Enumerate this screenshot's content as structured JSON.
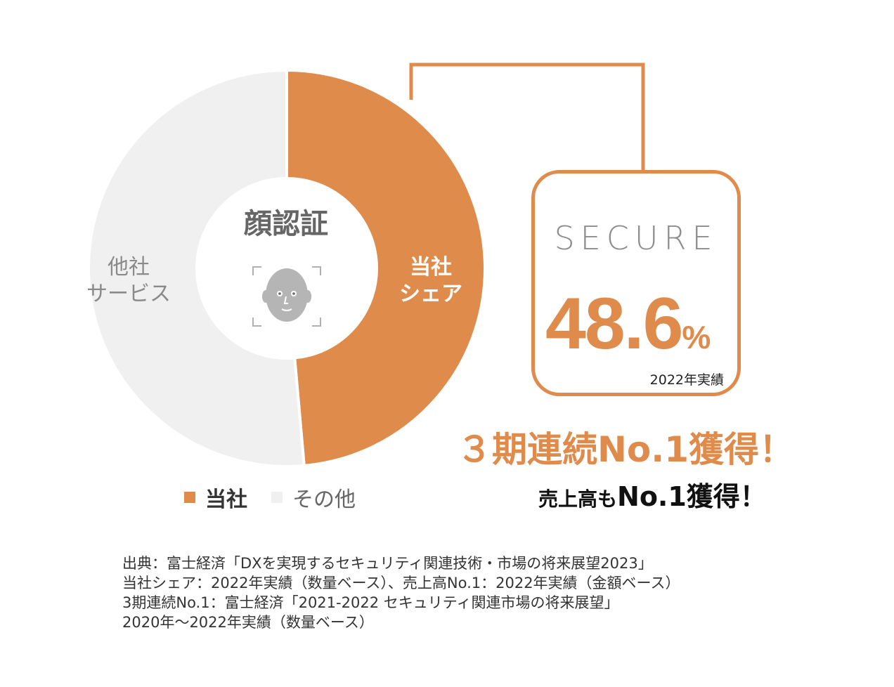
{
  "chart_data": {
    "type": "pie",
    "title": "顔認証",
    "slices": [
      {
        "label": "当社シェア",
        "value": 48.6,
        "color": "#df8b4c"
      },
      {
        "label": "他社サービス",
        "value": 51.4,
        "color": "#f0f0f0"
      }
    ],
    "legend": [
      {
        "label": "当社",
        "color": "#df8b4c"
      },
      {
        "label": "その他",
        "color": "#f0f0f0"
      }
    ],
    "legend_position": "bottom"
  },
  "labels": {
    "ours_segment": "当社\nシェア",
    "others_segment": "他社\nサービス",
    "face_icon": "face-recognition-icon"
  },
  "result": {
    "logo_text": "SECURE",
    "share_number": "48.6",
    "share_unit": "%",
    "year_note": "2022年実績",
    "headline": "３期連続No.1獲得！",
    "subline_a": "売上高も",
    "subline_b": "No.1獲得！"
  },
  "sources": [
    "出典：富士経済「DXを実現するセキュリティ関連技術・市場の将来展望2023」",
    "当社シェア：2022年実績（数量ベース）、売上高No.1：2022年実績（金額ベース）",
    "3期連続No.1：富士経済「2021-2022 セキュリティ関連市場の将来展望」",
    "2020年〜2022年実績（数量ベース）"
  ],
  "colors": {
    "accent": "#df8b4c",
    "others": "#f0f0f0",
    "text_gray": "#666666"
  }
}
